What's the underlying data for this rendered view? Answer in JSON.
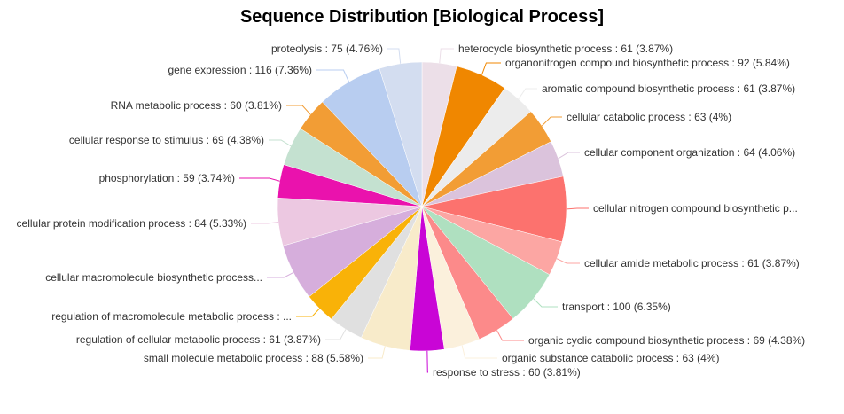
{
  "chart_data": {
    "type": "pie",
    "title": "Sequence Distribution [Biological Process]",
    "slices": [
      {
        "name": "heterocycle biosynthetic process",
        "value": 61,
        "label": "heterocycle biosynthetic process : 61 (3.87%)",
        "color": "#ecdfe8"
      },
      {
        "name": "organonitrogen compound biosynthetic process",
        "value": 92,
        "label": "organonitrogen compound biosynthetic process : 92 (5.84%)",
        "color": "#f08700"
      },
      {
        "name": "aromatic compound biosynthetic process",
        "value": 61,
        "label": "aromatic compound biosynthetic process : 61 (3.87%)",
        "color": "#ececec"
      },
      {
        "name": "cellular catabolic process",
        "value": 63,
        "label": "cellular catabolic process : 63 (4%)",
        "color": "#f29d35"
      },
      {
        "name": "cellular component organization",
        "value": 64,
        "label": "cellular component organization : 64 (4.06%)",
        "color": "#dbc3dc"
      },
      {
        "name": "cellular nitrogen compound biosynthetic process",
        "value": 115,
        "label": "cellular nitrogen compound biosynthetic p...",
        "color": "#fc726e"
      },
      {
        "name": "cellular amide metabolic process",
        "value": 61,
        "label": "cellular amide metabolic process : 61 (3.87%)",
        "color": "#fca6a3"
      },
      {
        "name": "transport",
        "value": 100,
        "label": "transport : 100 (6.35%)",
        "color": "#afe0c0"
      },
      {
        "name": "organic cyclic compound biosynthetic process",
        "value": 69,
        "label": "organic cyclic compound biosynthetic process : 69 (4.38%)",
        "color": "#fc8a8a"
      },
      {
        "name": "organic substance catabolic process",
        "value": 63,
        "label": "organic substance catabolic process : 63 (4%)",
        "color": "#fbf0dc"
      },
      {
        "name": "response to stress",
        "value": 60,
        "label": "response to stress : 60 (3.81%)",
        "color": "#c905d6"
      },
      {
        "name": "small molecule metabolic process",
        "value": 88,
        "label": "small molecule metabolic process : 88 (5.58%)",
        "color": "#f8ebca"
      },
      {
        "name": "regulation of cellular metabolic process",
        "value": 61,
        "label": "regulation of cellular metabolic process : 61 (3.87%)",
        "color": "#e0e0e0"
      },
      {
        "name": "regulation of macromolecule metabolic process",
        "value": 55,
        "label": "regulation of macromolecule metabolic process : ...",
        "color": "#f9b208"
      },
      {
        "name": "cellular macromolecule biosynthetic process",
        "value": 100,
        "label": "cellular macromolecule biosynthetic process...",
        "color": "#d6aedc"
      },
      {
        "name": "cellular protein modification process",
        "value": 84,
        "label": "cellular protein modification process : 84 (5.33%)",
        "color": "#ecc8e1"
      },
      {
        "name": "phosphorylation",
        "value": 59,
        "label": "phosphorylation : 59 (3.74%)",
        "color": "#ea12ad"
      },
      {
        "name": "cellular response to stimulus",
        "value": 69,
        "label": "cellular response to stimulus : 69 (4.38%)",
        "color": "#c4e1d0"
      },
      {
        "name": "RNA metabolic process",
        "value": 60,
        "label": "RNA metabolic process : 60 (3.81%)",
        "color": "#f29d35"
      },
      {
        "name": "gene expression",
        "value": 116,
        "label": "gene expression : 116 (7.36%)",
        "color": "#b8cdf0"
      },
      {
        "name": "proteolysis",
        "value": 75,
        "label": "proteolysis : 75 (4.76%)",
        "color": "#d3ddf0"
      }
    ],
    "legend": "none"
  }
}
